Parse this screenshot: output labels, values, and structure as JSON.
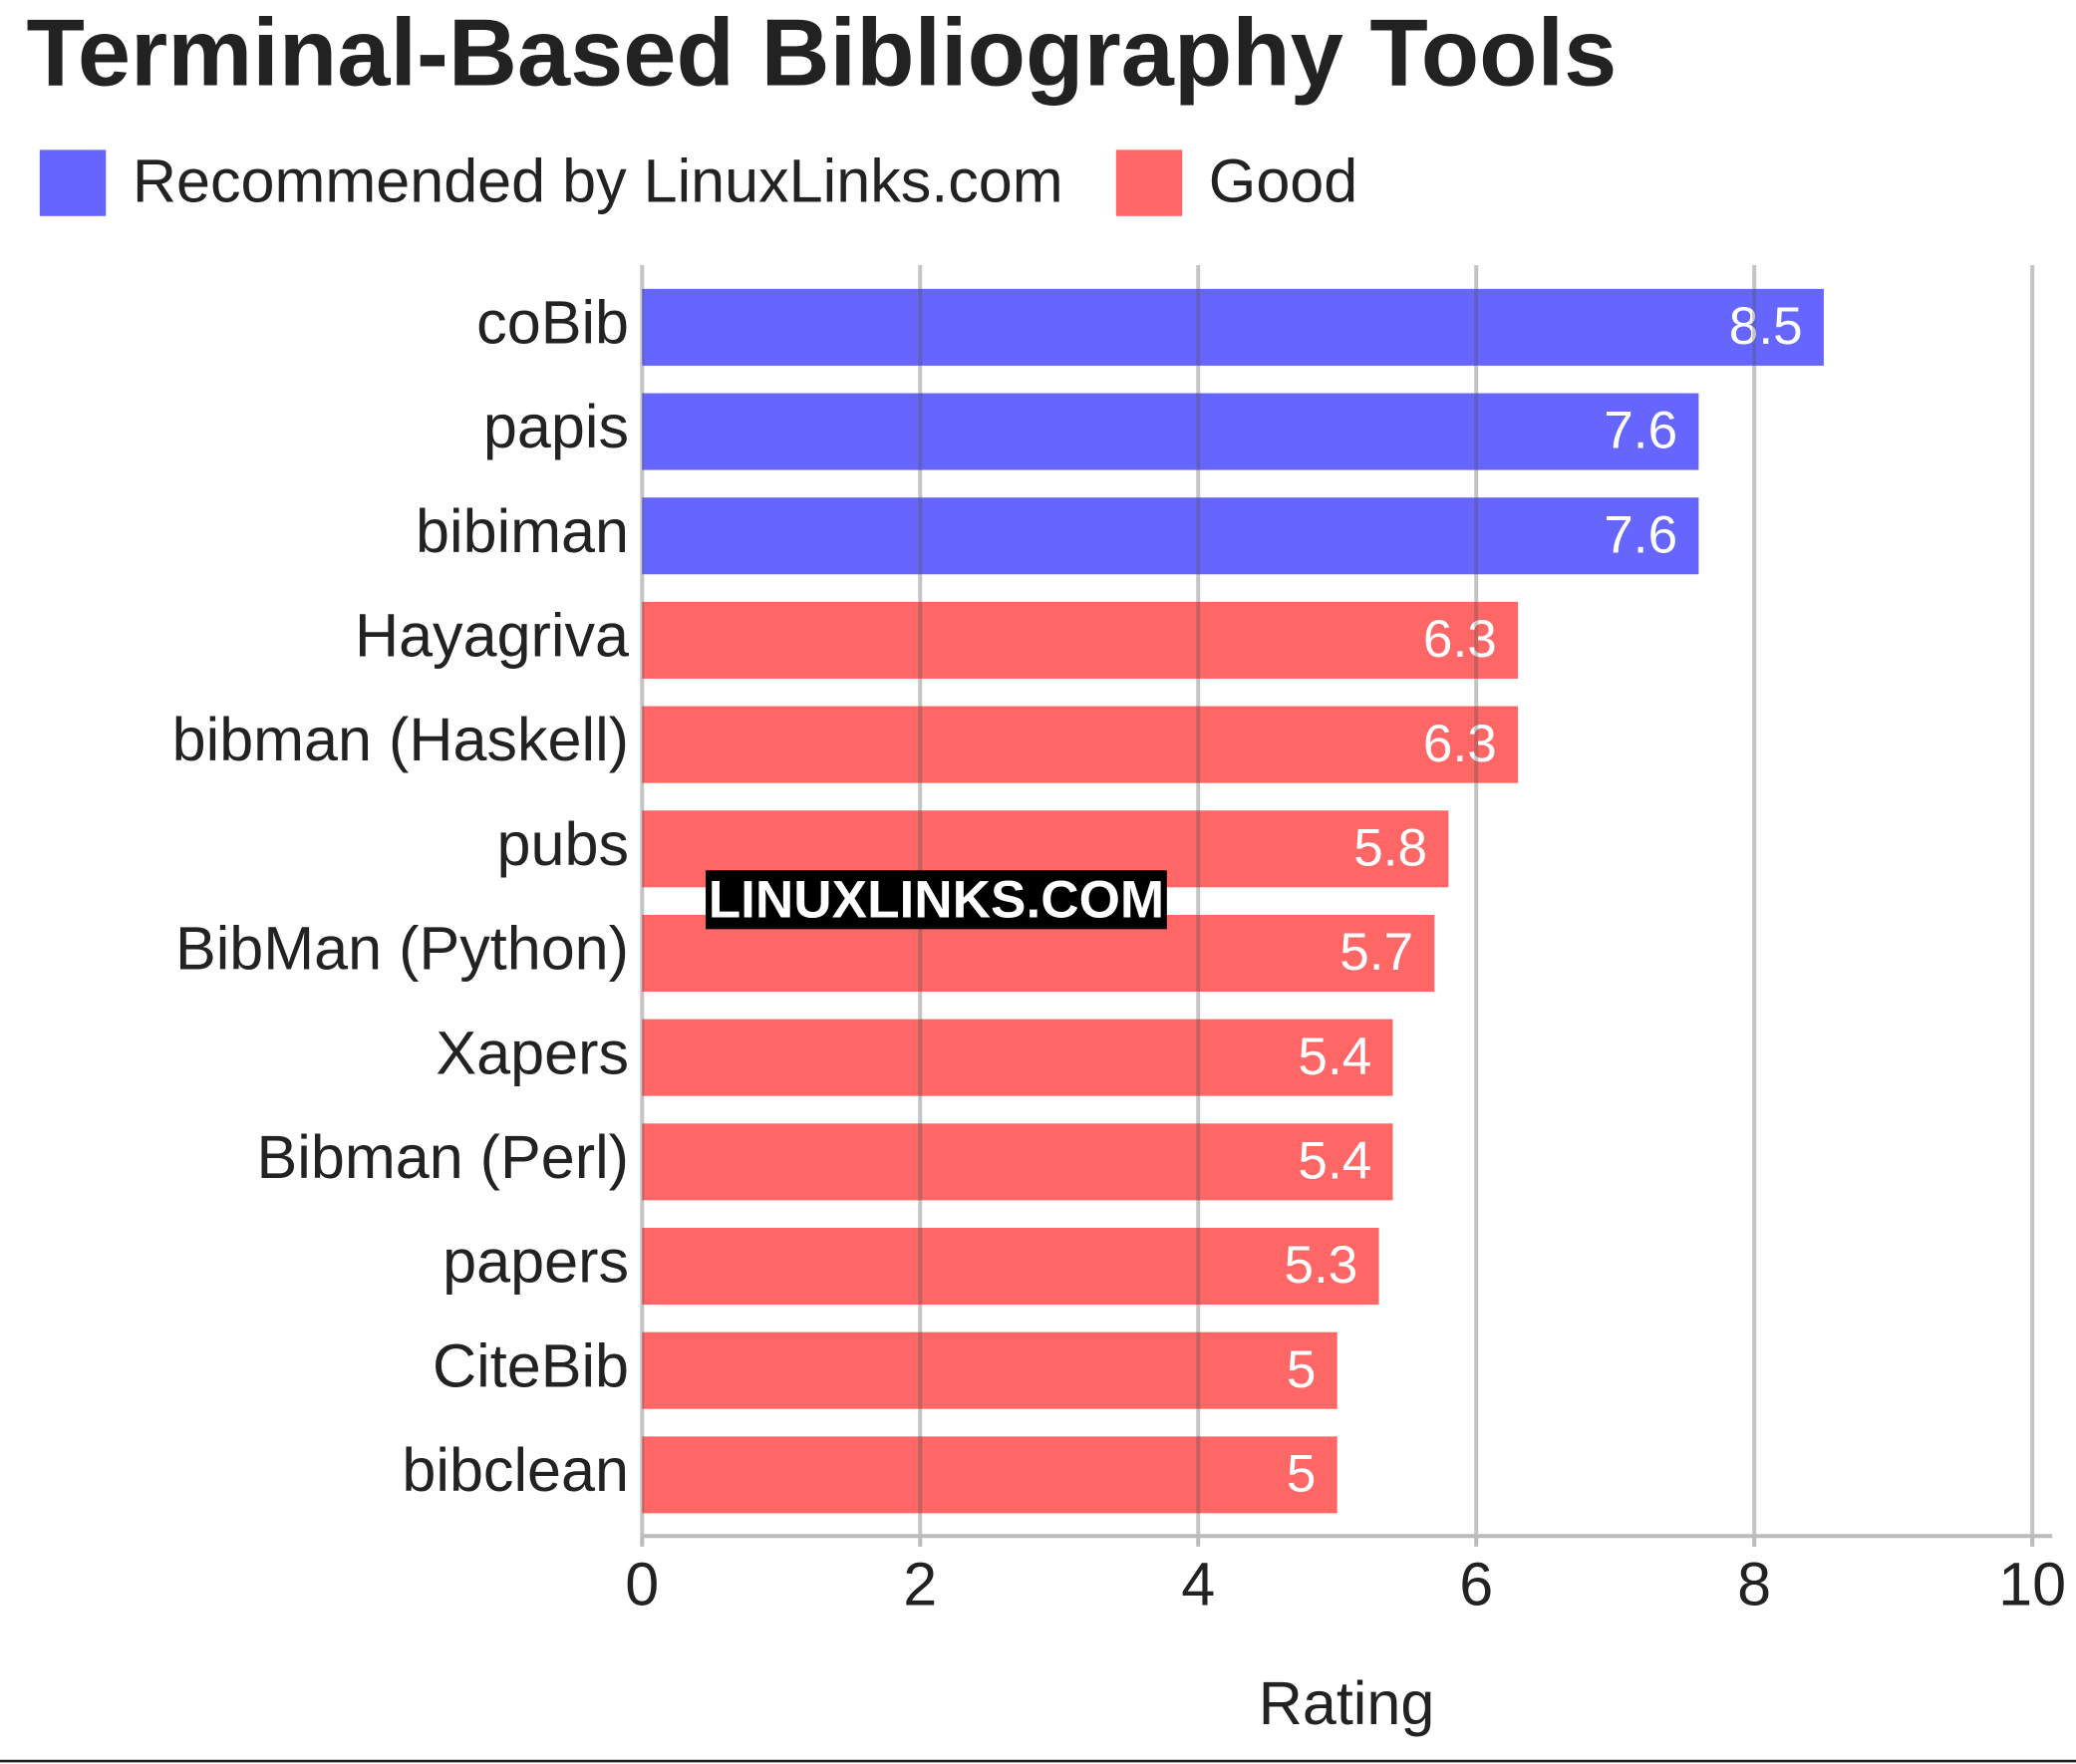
{
  "chart_data": {
    "type": "bar",
    "orientation": "horizontal",
    "title": "Terminal-Based Bibliography Tools",
    "xlabel": "Rating",
    "watermark": "LINUXLINKS.COM",
    "categories": [
      "coBib",
      "papis",
      "bibiman",
      "Hayagriva",
      "bibman (Haskell)",
      "pubs",
      "BibMan (Python)",
      "Xapers",
      "Bibman (Perl)",
      "papers",
      "CiteBib",
      "bibclean"
    ],
    "series": [
      {
        "name": "Recommended by LinuxLinks.com",
        "color": "#6666ff",
        "values": [
          8.5,
          7.6,
          7.6,
          null,
          null,
          null,
          null,
          null,
          null,
          null,
          null,
          null
        ]
      },
      {
        "name": "Good",
        "color": "#ff6666",
        "values": [
          null,
          null,
          null,
          6.3,
          6.3,
          5.8,
          5.7,
          5.4,
          5.4,
          5.3,
          5,
          5
        ]
      }
    ],
    "xlim": [
      0,
      10
    ],
    "xticks": [
      0,
      2,
      4,
      6,
      8,
      10
    ],
    "grid": true,
    "legend": "top-left"
  }
}
